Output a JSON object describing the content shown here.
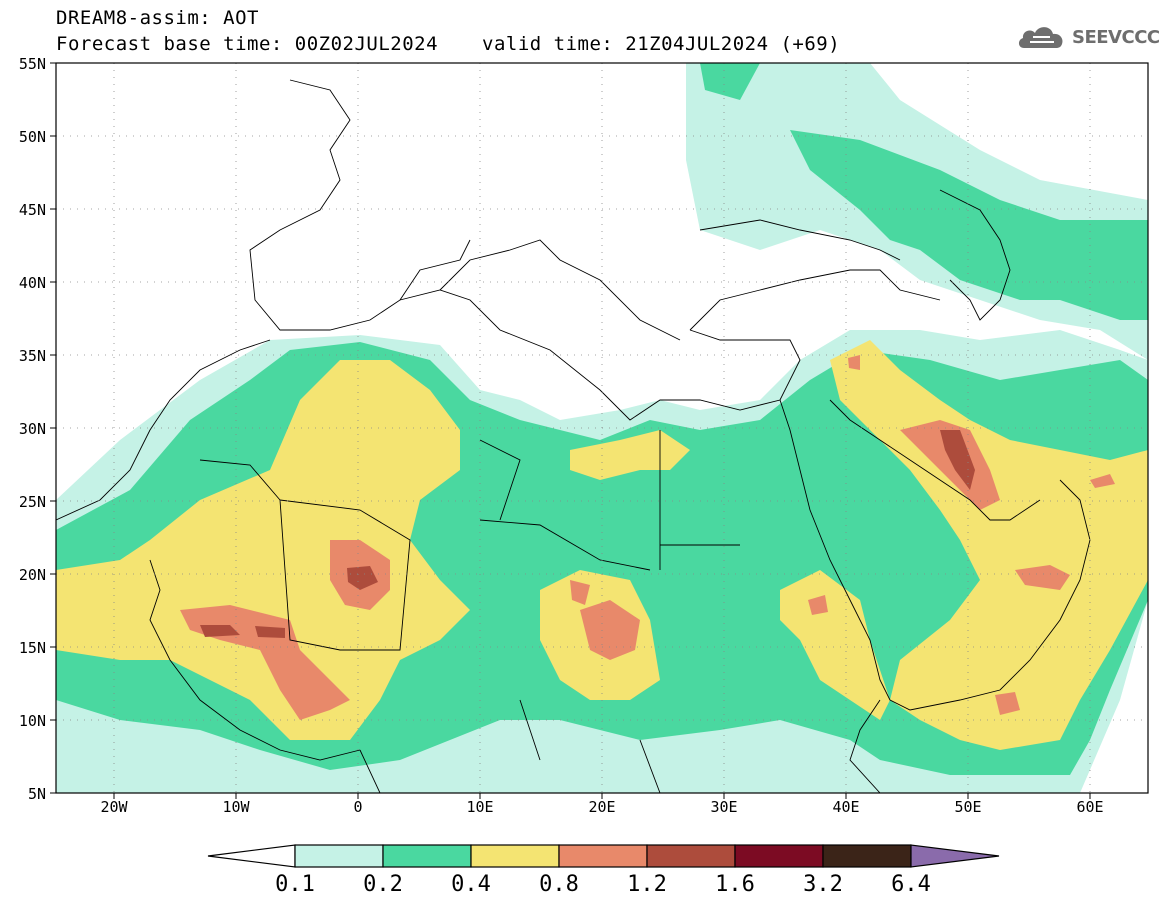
{
  "header": {
    "title_line1": "DREAM8-assim: AOT",
    "base_time": "Forecast base time: 00Z02JUL2024",
    "valid_time": "valid time: 21Z04JUL2024 (+69)"
  },
  "logo": {
    "text": "SEEVCCC",
    "icon": "cloud-icon"
  },
  "map": {
    "lat_labels": [
      "55N",
      "50N",
      "45N",
      "40N",
      "35N",
      "30N",
      "25N",
      "20N",
      "15N",
      "10N",
      "5N"
    ],
    "lon_labels": [
      "20W",
      "10W",
      "0",
      "10E",
      "20E",
      "30E",
      "40E",
      "50E",
      "60E"
    ]
  },
  "colorbar": {
    "labels": [
      "0.1",
      "0.2",
      "0.4",
      "0.8",
      "1.2",
      "1.6",
      "3.2",
      "6.4"
    ],
    "colors": [
      "#ffffff",
      "#c5f2e6",
      "#4ad8a0",
      "#f4e472",
      "#e8896a",
      "#ad4c3c",
      "#7c0b23",
      "#3b2418",
      "#8a6bab"
    ]
  }
}
